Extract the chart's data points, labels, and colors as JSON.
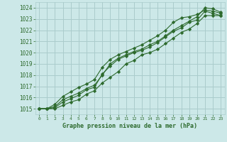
{
  "background_color": "#cce8e8",
  "grid_color": "#aacccc",
  "line_color": "#2d6a2d",
  "marker_color": "#2d6a2d",
  "title": "Graphe pression niveau de la mer (hPa)",
  "xlim": [
    -0.5,
    23.5
  ],
  "ylim": [
    1014.5,
    1024.5
  ],
  "yticks": [
    1015,
    1016,
    1017,
    1018,
    1019,
    1020,
    1021,
    1022,
    1023,
    1024
  ],
  "xticks": [
    0,
    1,
    2,
    3,
    4,
    5,
    6,
    7,
    8,
    9,
    10,
    11,
    12,
    13,
    14,
    15,
    16,
    17,
    18,
    19,
    20,
    21,
    22,
    23
  ],
  "series": [
    [
      1015.0,
      1015.0,
      1015.2,
      1015.8,
      1016.1,
      1016.4,
      1016.8,
      1017.1,
      1018.0,
      1019.0,
      1019.5,
      1019.8,
      1020.1,
      1020.3,
      1020.7,
      1021.0,
      1021.5,
      1022.0,
      1022.4,
      1022.8,
      1023.2,
      1024.0,
      1023.9,
      1023.6
    ],
    [
      1015.0,
      1015.0,
      1015.4,
      1016.1,
      1016.5,
      1016.9,
      1017.2,
      1017.6,
      1018.7,
      1019.4,
      1019.8,
      1020.1,
      1020.4,
      1020.7,
      1021.1,
      1021.5,
      1022.0,
      1022.7,
      1023.1,
      1023.2,
      1023.4,
      1023.8,
      1023.7,
      1023.5
    ],
    [
      1015.0,
      1015.0,
      1015.1,
      1015.6,
      1015.9,
      1016.2,
      1016.7,
      1016.9,
      1018.1,
      1018.8,
      1019.4,
      1019.7,
      1020.0,
      1020.2,
      1020.5,
      1020.9,
      1021.4,
      1021.9,
      1022.2,
      1022.7,
      1022.9,
      1023.7,
      1023.5,
      1023.3
    ],
    [
      1015.0,
      1015.0,
      1015.0,
      1015.3,
      1015.6,
      1015.8,
      1016.3,
      1016.6,
      1017.3,
      1017.8,
      1018.3,
      1019.0,
      1019.3,
      1019.8,
      1020.0,
      1020.3,
      1020.8,
      1021.3,
      1021.8,
      1022.1,
      1022.6,
      1023.3,
      1023.3,
      1023.3
    ]
  ]
}
